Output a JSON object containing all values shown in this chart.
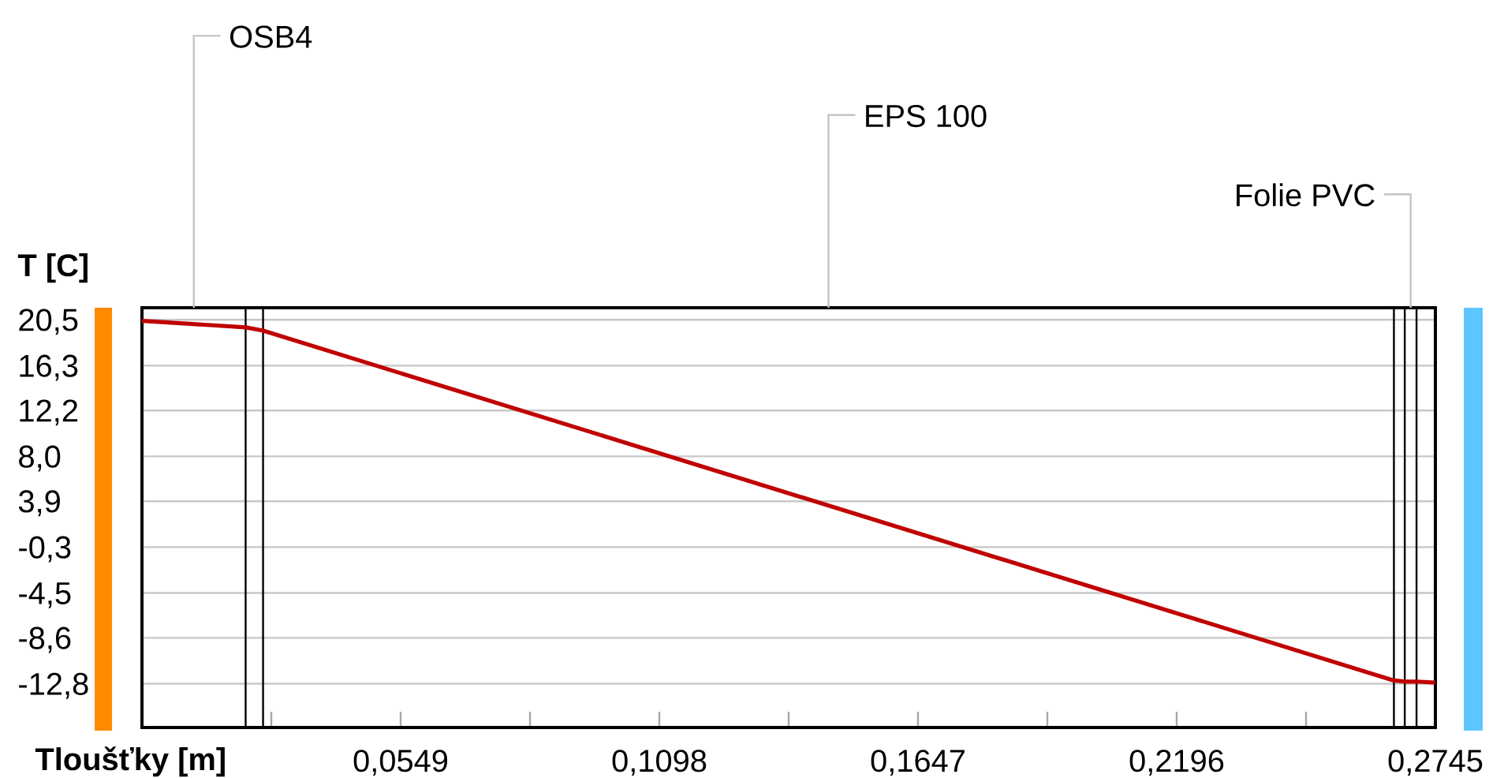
{
  "chart_data": {
    "type": "line",
    "xlabel": "Tloušťky [m]",
    "ylabel": "T [C]",
    "x": [
      0,
      0.022,
      0.0257,
      0.2657,
      0.268,
      0.2705,
      0.2745
    ],
    "series": [
      {
        "color": "#c00000",
        "values": [
          20.4,
          19.8,
          19.5,
          -12.5,
          -12.6,
          -12.6,
          -12.7
        ]
      }
    ],
    "xlim": [
      0,
      0.2745
    ],
    "ylim": [
      -16.8,
      21.6
    ],
    "xticks": [
      {
        "value": 0.02745,
        "label": null
      },
      {
        "value": 0.0549,
        "label": "0,0549"
      },
      {
        "value": 0.08235,
        "label": null
      },
      {
        "value": 0.1098,
        "label": "0,1098"
      },
      {
        "value": 0.13725,
        "label": null
      },
      {
        "value": 0.1647,
        "label": "0,1647"
      },
      {
        "value": 0.19215,
        "label": null
      },
      {
        "value": 0.2196,
        "label": "0,2196"
      },
      {
        "value": 0.24705,
        "label": null
      },
      {
        "value": 0.2745,
        "label": "0,2745"
      }
    ],
    "yticks": [
      {
        "value": 20.5,
        "label": "20,5"
      },
      {
        "value": 16.3,
        "label": "16,3"
      },
      {
        "value": 12.2,
        "label": "12,2"
      },
      {
        "value": 8.0,
        "label": "8,0"
      },
      {
        "value": 3.9,
        "label": "3,9"
      },
      {
        "value": -0.3,
        "label": "-0,3"
      },
      {
        "value": -4.5,
        "label": "-4,5"
      },
      {
        "value": -8.6,
        "label": "-8,6"
      },
      {
        "value": -12.8,
        "label": "-12,8"
      }
    ],
    "grid": "y",
    "ref_lines": [
      {
        "axis": "x",
        "value": 0.022,
        "color": "#000000"
      },
      {
        "axis": "x",
        "value": 0.0257,
        "color": "#000000"
      },
      {
        "axis": "x",
        "value": 0.2657,
        "color": "#000000"
      },
      {
        "axis": "x",
        "value": 0.268,
        "color": "#000000"
      },
      {
        "axis": "x",
        "value": 0.2705,
        "color": "#000000"
      }
    ],
    "annotations": [
      "OSB4",
      "EPS 100",
      "Folie PVC"
    ]
  }
}
